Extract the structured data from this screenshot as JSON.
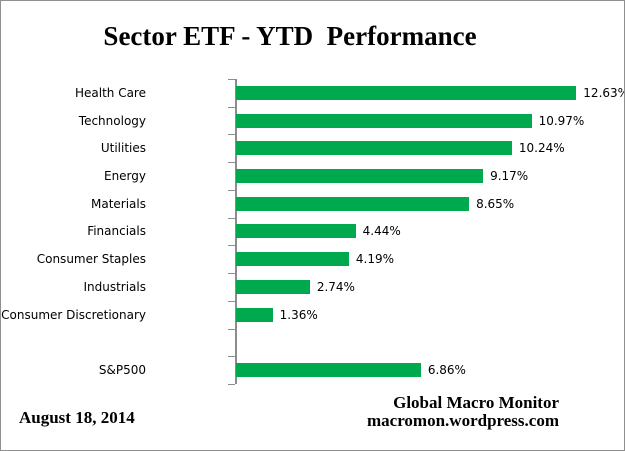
{
  "chart_data": {
    "type": "bar",
    "orientation": "horizontal",
    "title": "Sector ETF - YTD  Performance",
    "categories": [
      "Health Care",
      "Technology",
      "Utilities",
      "Energy",
      "Materials",
      "Financials",
      "Consumer Staples",
      "Industrials",
      "Consumer Discretionary",
      "",
      "S&P500"
    ],
    "values": [
      12.63,
      10.97,
      10.24,
      9.17,
      8.65,
      4.44,
      4.19,
      2.74,
      1.36,
      null,
      6.86
    ],
    "data_labels": [
      "12.63%",
      "10.97%",
      "10.24%",
      "9.17%",
      "8.65%",
      "4.44%",
      "4.19%",
      "2.74%",
      "1.36%",
      "",
      "6.86%"
    ],
    "xlim": [
      0,
      14.4
    ],
    "grid": false,
    "legend": false,
    "bar_color": "#00A94E",
    "axis_color": "#8C8C8C"
  },
  "footer": {
    "date": "August 18, 2014",
    "source_line1": "Global Macro Monitor",
    "source_line2": "macromon.wordpress.com"
  }
}
